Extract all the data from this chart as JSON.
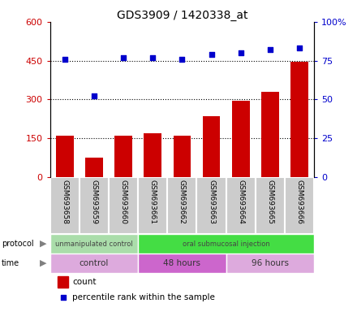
{
  "title": "GDS3909 / 1420338_at",
  "samples": [
    "GSM693658",
    "GSM693659",
    "GSM693660",
    "GSM693661",
    "GSM693662",
    "GSM693663",
    "GSM693664",
    "GSM693665",
    "GSM693666"
  ],
  "counts": [
    160,
    75,
    160,
    170,
    160,
    235,
    295,
    330,
    445
  ],
  "percentile_ranks": [
    76,
    52,
    77,
    77,
    76,
    79,
    80,
    82,
    83
  ],
  "ylim_left": [
    0,
    600
  ],
  "ylim_right": [
    0,
    100
  ],
  "yticks_left": [
    0,
    150,
    300,
    450,
    600
  ],
  "yticks_right": [
    0,
    25,
    50,
    75,
    100
  ],
  "right_tick_labels": [
    "0",
    "25",
    "50",
    "75",
    "100%"
  ],
  "bar_color": "#cc0000",
  "dot_color": "#0000cc",
  "protocol_groups": [
    {
      "label": "unmanipulated control",
      "start": 0,
      "end": 3,
      "color": "#aaddaa"
    },
    {
      "label": "oral submucosal injection",
      "start": 3,
      "end": 9,
      "color": "#44dd44"
    }
  ],
  "time_groups": [
    {
      "label": "control",
      "start": 0,
      "end": 3,
      "color": "#ddaadd"
    },
    {
      "label": "48 hours",
      "start": 3,
      "end": 6,
      "color": "#cc66cc"
    },
    {
      "label": "96 hours",
      "start": 6,
      "end": 9,
      "color": "#ddaadd"
    }
  ],
  "title_fontsize": 10,
  "tick_fontsize": 8,
  "left_axis_color": "#cc0000",
  "right_axis_color": "#0000cc",
  "sample_bg_color": "#cccccc",
  "sample_border_color": "#ffffff",
  "legend_count_label": "count",
  "legend_pct_label": "percentile rank within the sample",
  "protocol_label": "protocol",
  "time_label": "time",
  "grid_yticks": [
    150,
    300,
    450
  ]
}
